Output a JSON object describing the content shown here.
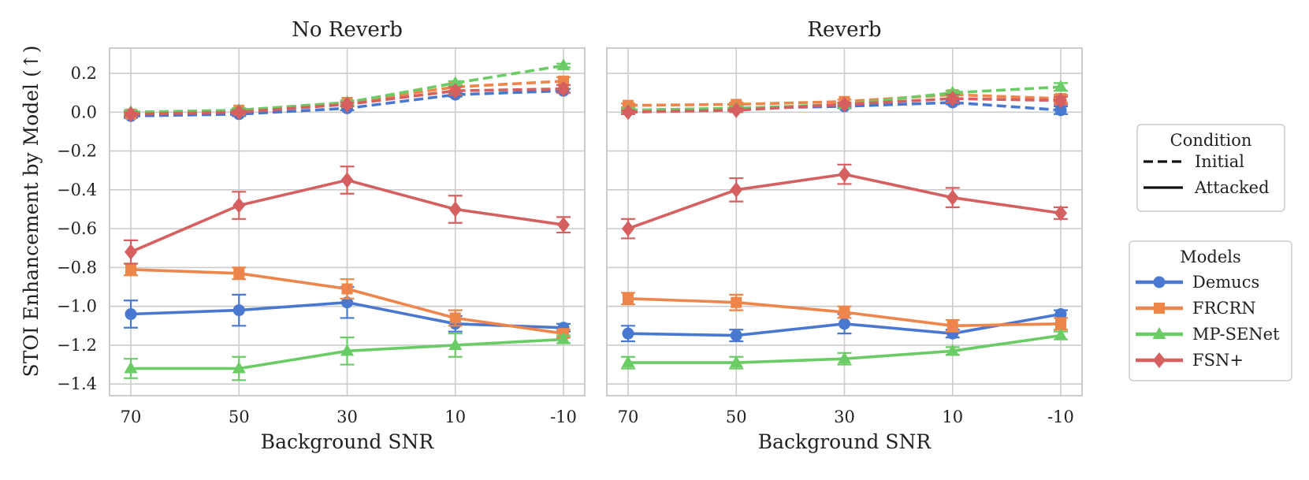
{
  "chart_data": {
    "type": "line",
    "ylabel": "STOI Enhancement by Model (↑)",
    "ylim": [
      -1.46,
      0.33
    ],
    "yticks": [
      0.2,
      0.0,
      -0.2,
      -0.4,
      -0.6,
      -0.8,
      -1.0,
      -1.2,
      -1.4
    ],
    "ytick_labels": [
      "0.2",
      "0.0",
      "−0.2",
      "−0.4",
      "−0.6",
      "−0.8",
      "−1.0",
      "−1.2",
      "−1.4"
    ],
    "categories": [
      "70",
      "50",
      "30",
      "10",
      "-10"
    ],
    "xlabel": "Background SNR",
    "grid": true,
    "colors": {
      "Demucs": "#4878d0",
      "FRCRN": "#ee854a",
      "MP-SENet": "#6acc64",
      "FSN+": "#d65f5f"
    },
    "markers": {
      "Demucs": "circle",
      "FRCRN": "square",
      "MP-SENet": "triangle",
      "FSN+": "diamond"
    },
    "legend_condition": {
      "title": "Condition",
      "entries": [
        {
          "label": "Initial",
          "style": "dashed"
        },
        {
          "label": "Attacked",
          "style": "solid"
        }
      ],
      "placement": "right"
    },
    "legend_models": {
      "title": "Models",
      "entries": [
        "Demucs",
        "FRCRN",
        "MP-SENet",
        "FSN+"
      ],
      "placement": "right"
    },
    "panels": [
      {
        "title": "No Reverb",
        "series": [
          {
            "model": "Demucs",
            "condition": "Initial",
            "values": [
              -0.02,
              -0.01,
              0.02,
              0.09,
              0.11
            ],
            "err": [
              0.01,
              0.01,
              0.01,
              0.01,
              0.01
            ]
          },
          {
            "model": "FRCRN",
            "condition": "Initial",
            "values": [
              -0.01,
              0.01,
              0.05,
              0.13,
              0.16
            ],
            "err": [
              0.01,
              0.01,
              0.01,
              0.02,
              0.02
            ]
          },
          {
            "model": "MP-SENet",
            "condition": "Initial",
            "values": [
              0.0,
              0.01,
              0.05,
              0.15,
              0.24
            ],
            "err": [
              0.01,
              0.01,
              0.01,
              0.01,
              0.01
            ]
          },
          {
            "model": "FSN+",
            "condition": "Initial",
            "values": [
              -0.01,
              0.0,
              0.04,
              0.11,
              0.12
            ],
            "err": [
              0.01,
              0.01,
              0.01,
              0.02,
              0.02
            ]
          },
          {
            "model": "Demucs",
            "condition": "Attacked",
            "values": [
              -1.04,
              -1.02,
              -0.98,
              -1.09,
              -1.11
            ],
            "err": [
              0.07,
              0.08,
              0.08,
              0.04,
              0.02
            ]
          },
          {
            "model": "FRCRN",
            "condition": "Attacked",
            "values": [
              -0.81,
              -0.83,
              -0.91,
              -1.06,
              -1.14
            ],
            "err": [
              0.03,
              0.03,
              0.05,
              0.04,
              0.02
            ]
          },
          {
            "model": "MP-SENet",
            "condition": "Attacked",
            "values": [
              -1.32,
              -1.32,
              -1.23,
              -1.2,
              -1.17
            ],
            "err": [
              0.05,
              0.06,
              0.07,
              0.06,
              0.02
            ]
          },
          {
            "model": "FSN+",
            "condition": "Attacked",
            "values": [
              -0.72,
              -0.48,
              -0.35,
              -0.5,
              -0.58
            ],
            "err": [
              0.06,
              0.07,
              0.07,
              0.07,
              0.04
            ]
          }
        ]
      },
      {
        "title": "Reverb",
        "series": [
          {
            "model": "Demucs",
            "condition": "Initial",
            "values": [
              0.01,
              0.02,
              0.03,
              0.05,
              0.01
            ],
            "err": [
              0.01,
              0.01,
              0.01,
              0.01,
              0.02
            ]
          },
          {
            "model": "FRCRN",
            "condition": "Initial",
            "values": [
              0.035,
              0.04,
              0.055,
              0.09,
              0.07
            ],
            "err": [
              0.01,
              0.01,
              0.01,
              0.02,
              0.02
            ]
          },
          {
            "model": "MP-SENet",
            "condition": "Initial",
            "values": [
              0.01,
              0.02,
              0.04,
              0.1,
              0.13
            ],
            "err": [
              0.01,
              0.01,
              0.01,
              0.01,
              0.02
            ]
          },
          {
            "model": "FSN+",
            "condition": "Initial",
            "values": [
              0.0,
              0.01,
              0.04,
              0.07,
              0.06
            ],
            "err": [
              0.01,
              0.01,
              0.01,
              0.02,
              0.02
            ]
          },
          {
            "model": "Demucs",
            "condition": "Attacked",
            "values": [
              -1.14,
              -1.15,
              -1.09,
              -1.14,
              -1.04
            ],
            "err": [
              0.04,
              0.03,
              0.05,
              0.02,
              0.02
            ]
          },
          {
            "model": "FRCRN",
            "condition": "Attacked",
            "values": [
              -0.96,
              -0.98,
              -1.03,
              -1.1,
              -1.09
            ],
            "err": [
              0.03,
              0.04,
              0.03,
              0.03,
              0.03
            ]
          },
          {
            "model": "MP-SENet",
            "condition": "Attacked",
            "values": [
              -1.29,
              -1.29,
              -1.27,
              -1.23,
              -1.15
            ],
            "err": [
              0.03,
              0.03,
              0.03,
              0.02,
              0.02
            ]
          },
          {
            "model": "FSN+",
            "condition": "Attacked",
            "values": [
              -0.6,
              -0.4,
              -0.32,
              -0.44,
              -0.52
            ],
            "err": [
              0.05,
              0.06,
              0.05,
              0.05,
              0.03
            ]
          }
        ]
      }
    ]
  }
}
